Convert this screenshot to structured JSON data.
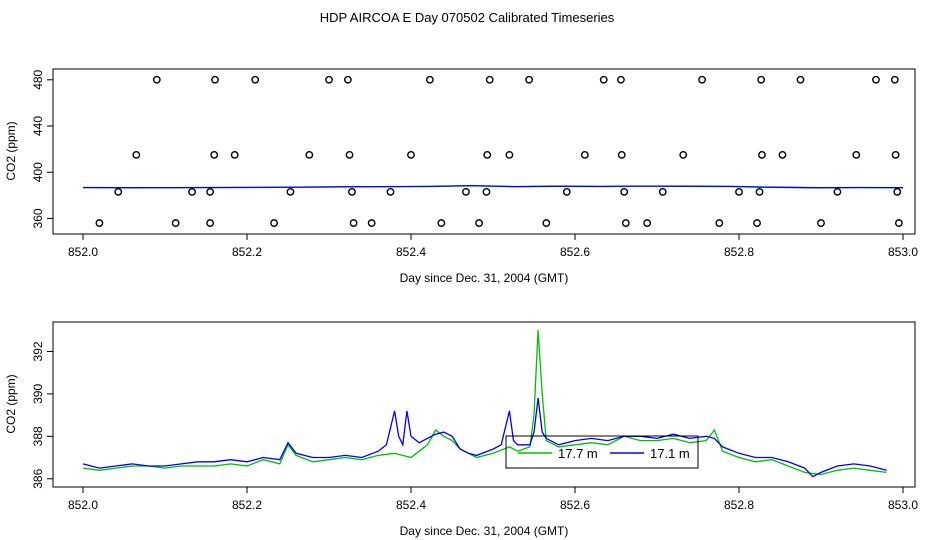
{
  "title": "HDP AIRCOA E  Day 070502  Calibrated Timeseries",
  "colors": {
    "green": "#00c000",
    "blue": "#0000ff",
    "axis": "#000000"
  },
  "chart_data": [
    {
      "type": "scatter",
      "xlabel": "Day since Dec. 31, 2004 (GMT)",
      "ylabel": "CO2 (ppm)",
      "xlim": [
        852.0,
        853.0
      ],
      "ylim": [
        350,
        485
      ],
      "xticks": [
        852.0,
        852.2,
        852.4,
        852.6,
        852.8,
        853.0
      ],
      "xtick_labels": [
        "852.0",
        "852.2",
        "852.4",
        "852.6",
        "852.8",
        "853.0"
      ],
      "yticks": [
        360,
        400,
        440,
        480
      ],
      "ytick_labels": [
        "360",
        "400",
        "440",
        "480"
      ],
      "points": [
        [
          852.02,
          356
        ],
        [
          852.113,
          356
        ],
        [
          852.155,
          356
        ],
        [
          852.233,
          356
        ],
        [
          852.33,
          356
        ],
        [
          852.352,
          356
        ],
        [
          852.437,
          356
        ],
        [
          852.483,
          356
        ],
        [
          852.565,
          356
        ],
        [
          852.662,
          356
        ],
        [
          852.688,
          356
        ],
        [
          852.776,
          356
        ],
        [
          852.822,
          356
        ],
        [
          852.9,
          356
        ],
        [
          852.995,
          356
        ],
        [
          852.043,
          383
        ],
        [
          852.133,
          383
        ],
        [
          852.155,
          383
        ],
        [
          852.253,
          383
        ],
        [
          852.328,
          383
        ],
        [
          852.375,
          383
        ],
        [
          852.467,
          383
        ],
        [
          852.492,
          383
        ],
        [
          852.59,
          383
        ],
        [
          852.66,
          383
        ],
        [
          852.707,
          383
        ],
        [
          852.8,
          383
        ],
        [
          852.825,
          383
        ],
        [
          852.92,
          383
        ],
        [
          852.993,
          383
        ],
        [
          852.065,
          415
        ],
        [
          852.16,
          415
        ],
        [
          852.185,
          415
        ],
        [
          852.276,
          415
        ],
        [
          852.325,
          415
        ],
        [
          852.4,
          415
        ],
        [
          852.493,
          415
        ],
        [
          852.52,
          415
        ],
        [
          852.612,
          415
        ],
        [
          852.657,
          415
        ],
        [
          852.732,
          415
        ],
        [
          852.828,
          415
        ],
        [
          852.853,
          415
        ],
        [
          852.943,
          415
        ],
        [
          852.991,
          415
        ],
        [
          852.09,
          480
        ],
        [
          852.161,
          480
        ],
        [
          852.21,
          480
        ],
        [
          852.3,
          480
        ],
        [
          852.323,
          480
        ],
        [
          852.423,
          480
        ],
        [
          852.496,
          480
        ],
        [
          852.544,
          480
        ],
        [
          852.635,
          480
        ],
        [
          852.656,
          480
        ],
        [
          852.755,
          480
        ],
        [
          852.827,
          480
        ],
        [
          852.875,
          480
        ],
        [
          852.967,
          480
        ],
        [
          852.99,
          480
        ]
      ],
      "series": [
        {
          "values": [
            386.7,
            386.6,
            386.6,
            386.7,
            386.8,
            387.0,
            387.3,
            387.5,
            387.6,
            388.3,
            387.5,
            387.8,
            387.6,
            387.9,
            387.8,
            387.6,
            386.9,
            386.5,
            386.7,
            386.5
          ]
        },
        {
          "values": [
            386.8,
            386.6,
            386.7,
            386.8,
            386.9,
            387.1,
            387.4,
            387.6,
            387.7,
            388.4,
            387.6,
            387.9,
            387.7,
            388.0,
            387.9,
            387.7,
            387.0,
            386.6,
            386.8,
            386.6
          ]
        }
      ]
    },
    {
      "type": "line",
      "xlabel": "Day since Dec. 31, 2004 (GMT)",
      "ylabel": "CO2 (ppm)",
      "xlim": [
        852.0,
        853.0
      ],
      "ylim": [
        385.8,
        393.2
      ],
      "xticks": [
        852.0,
        852.2,
        852.4,
        852.6,
        852.8,
        853.0
      ],
      "xtick_labels": [
        "852.0",
        "852.2",
        "852.4",
        "852.6",
        "852.8",
        "853.0"
      ],
      "yticks": [
        386,
        388,
        390,
        392
      ],
      "ytick_labels": [
        "386",
        "388",
        "390",
        "392"
      ],
      "legend_position": "center",
      "series": [
        {
          "name": "17.7 m",
          "color": "#00c000",
          "points": [
            [
              852.0,
              386.5
            ],
            [
              852.02,
              386.4
            ],
            [
              852.04,
              386.5
            ],
            [
              852.06,
              386.6
            ],
            [
              852.08,
              386.6
            ],
            [
              852.1,
              386.5
            ],
            [
              852.12,
              386.6
            ],
            [
              852.14,
              386.6
            ],
            [
              852.16,
              386.6
            ],
            [
              852.18,
              386.7
            ],
            [
              852.2,
              386.6
            ],
            [
              852.22,
              386.9
            ],
            [
              852.24,
              386.7
            ],
            [
              852.25,
              387.6
            ],
            [
              852.26,
              387.1
            ],
            [
              852.28,
              386.8
            ],
            [
              852.3,
              386.9
            ],
            [
              852.32,
              387.0
            ],
            [
              852.34,
              386.9
            ],
            [
              852.36,
              387.1
            ],
            [
              852.38,
              387.2
            ],
            [
              852.4,
              387.0
            ],
            [
              852.41,
              387.3
            ],
            [
              852.42,
              387.6
            ],
            [
              852.43,
              388.3
            ],
            [
              852.44,
              388.0
            ],
            [
              852.45,
              387.8
            ],
            [
              852.46,
              387.4
            ],
            [
              852.47,
              387.2
            ],
            [
              852.48,
              387.0
            ],
            [
              852.5,
              387.2
            ],
            [
              852.52,
              387.5
            ],
            [
              852.53,
              387.3
            ],
            [
              852.545,
              387.5
            ],
            [
              852.55,
              389.0
            ],
            [
              852.555,
              393.0
            ],
            [
              852.56,
              390.0
            ],
            [
              852.565,
              387.8
            ],
            [
              852.58,
              387.5
            ],
            [
              852.6,
              387.6
            ],
            [
              852.62,
              387.7
            ],
            [
              852.64,
              387.6
            ],
            [
              852.66,
              388.0
            ],
            [
              852.68,
              387.8
            ],
            [
              852.7,
              387.8
            ],
            [
              852.72,
              387.9
            ],
            [
              852.74,
              387.7
            ],
            [
              852.76,
              387.8
            ],
            [
              852.77,
              388.3
            ],
            [
              852.78,
              387.3
            ],
            [
              852.8,
              387.0
            ],
            [
              852.82,
              386.8
            ],
            [
              852.84,
              386.9
            ],
            [
              852.86,
              386.6
            ],
            [
              852.88,
              386.3
            ],
            [
              852.9,
              386.2
            ],
            [
              852.92,
              386.4
            ],
            [
              852.94,
              386.5
            ],
            [
              852.96,
              386.4
            ],
            [
              852.98,
              386.3
            ]
          ]
        },
        {
          "name": "17.1 m",
          "color": "#0000ff",
          "points": [
            [
              852.0,
              386.7
            ],
            [
              852.02,
              386.5
            ],
            [
              852.04,
              386.6
            ],
            [
              852.06,
              386.7
            ],
            [
              852.08,
              386.6
            ],
            [
              852.1,
              386.6
            ],
            [
              852.12,
              386.7
            ],
            [
              852.14,
              386.8
            ],
            [
              852.16,
              386.8
            ],
            [
              852.18,
              386.9
            ],
            [
              852.2,
              386.8
            ],
            [
              852.22,
              387.0
            ],
            [
              852.24,
              386.9
            ],
            [
              852.25,
              387.7
            ],
            [
              852.26,
              387.2
            ],
            [
              852.28,
              387.0
            ],
            [
              852.3,
              387.0
            ],
            [
              852.32,
              387.1
            ],
            [
              852.34,
              387.0
            ],
            [
              852.36,
              387.3
            ],
            [
              852.37,
              387.6
            ],
            [
              852.38,
              389.2
            ],
            [
              852.385,
              388.0
            ],
            [
              852.39,
              387.6
            ],
            [
              852.395,
              389.2
            ],
            [
              852.4,
              388.0
            ],
            [
              852.41,
              387.7
            ],
            [
              852.42,
              387.9
            ],
            [
              852.43,
              388.1
            ],
            [
              852.44,
              388.2
            ],
            [
              852.45,
              388.0
            ],
            [
              852.46,
              387.4
            ],
            [
              852.47,
              387.2
            ],
            [
              852.48,
              387.1
            ],
            [
              852.5,
              387.4
            ],
            [
              852.51,
              387.6
            ],
            [
              852.52,
              389.2
            ],
            [
              852.525,
              387.8
            ],
            [
              852.53,
              387.6
            ],
            [
              852.545,
              387.6
            ],
            [
              852.55,
              388.2
            ],
            [
              852.555,
              389.8
            ],
            [
              852.56,
              388.2
            ],
            [
              852.565,
              387.9
            ],
            [
              852.58,
              387.6
            ],
            [
              852.6,
              387.8
            ],
            [
              852.62,
              387.9
            ],
            [
              852.64,
              387.8
            ],
            [
              852.66,
              388.0
            ],
            [
              852.68,
              388.0
            ],
            [
              852.7,
              387.9
            ],
            [
              852.72,
              388.1
            ],
            [
              852.74,
              387.9
            ],
            [
              852.76,
              388.0
            ],
            [
              852.77,
              387.9
            ],
            [
              852.78,
              387.5
            ],
            [
              852.8,
              387.2
            ],
            [
              852.82,
              387.0
            ],
            [
              852.84,
              387.0
            ],
            [
              852.86,
              386.8
            ],
            [
              852.88,
              386.5
            ],
            [
              852.89,
              386.1
            ],
            [
              852.9,
              386.3
            ],
            [
              852.92,
              386.6
            ],
            [
              852.94,
              386.7
            ],
            [
              852.96,
              386.6
            ],
            [
              852.98,
              386.4
            ]
          ]
        }
      ]
    }
  ]
}
